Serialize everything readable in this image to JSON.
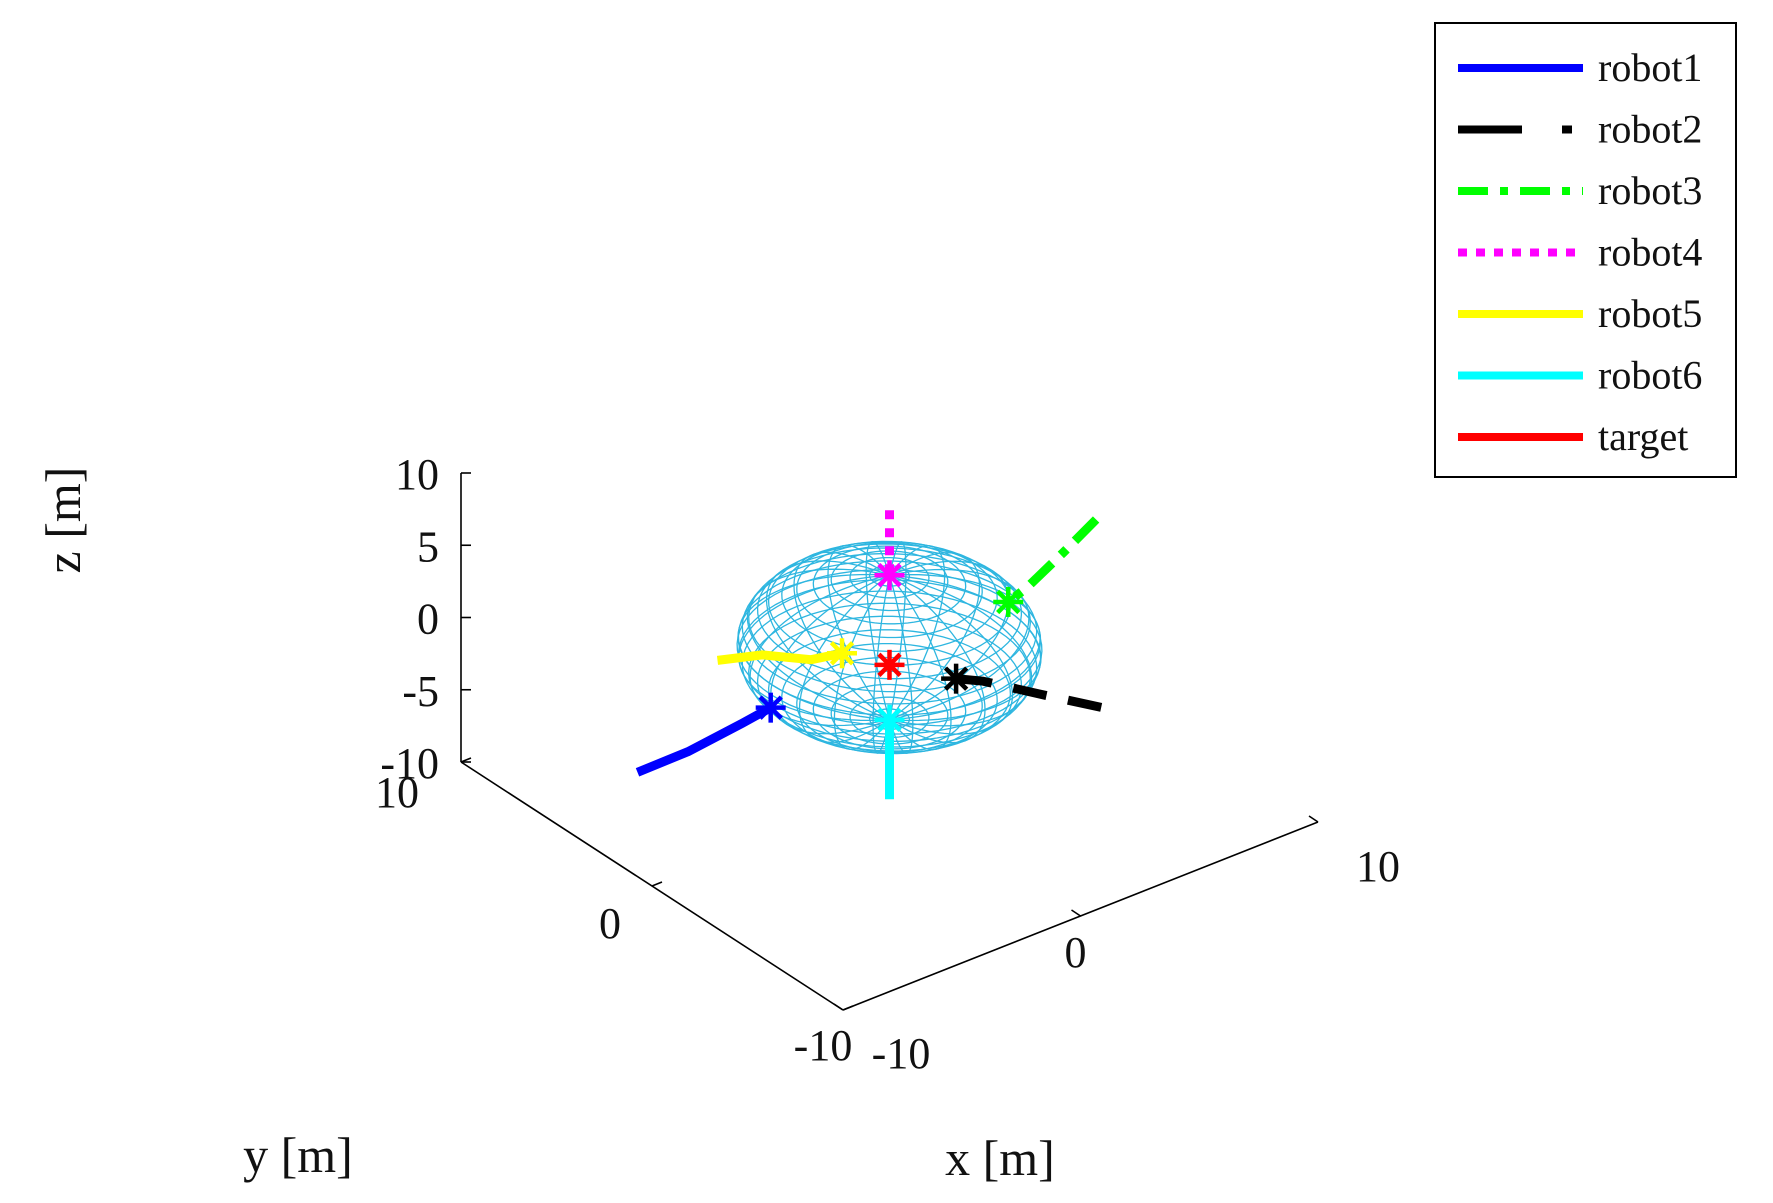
{
  "chart_data": {
    "type": "line",
    "projection": "3d",
    "xlabel": "x [m]",
    "ylabel": "y [m]",
    "zlabel": "z [m]",
    "xlim": [
      -10,
      10
    ],
    "ylim": [
      -10,
      10
    ],
    "zlim": [
      -10,
      10
    ],
    "x_ticks": [
      "-10",
      "0",
      "10"
    ],
    "y_ticks": [
      "-10",
      "0",
      "10"
    ],
    "z_ticks": [
      "-10",
      "-5",
      "0",
      "5",
      "10"
    ],
    "grid": false,
    "legend_placement": "top-right, outside plot",
    "sphere": {
      "center": [
        0,
        0,
        0
      ],
      "radius": 5,
      "color": "#2EB6E0",
      "style": "wireframe"
    },
    "series": [
      {
        "name": "robot1",
        "color": "#0000FF",
        "dash": "solid",
        "points": [
          [
            -9.0,
            2.0,
            -4.5
          ],
          [
            -7.2,
            1.6,
            -3.9
          ],
          [
            -5.4,
            1.0,
            -2.6
          ],
          [
            -4.6,
            0.5,
            -1.6
          ]
        ],
        "end_marker": "*"
      },
      {
        "name": "robot2",
        "color": "#000000",
        "dash": "dashed",
        "points": [
          [
            6.5,
            -3.0,
            -5.8
          ],
          [
            4.6,
            -2.1,
            -4.4
          ],
          [
            2.9,
            -1.3,
            -3.1
          ],
          [
            2.0,
            -1.0,
            -2.6
          ]
        ],
        "end_marker": "*"
      },
      {
        "name": "robot3",
        "color": "#00FF00",
        "dash": "dashdot",
        "points": [
          [
            8.7,
            0.0,
            3.2
          ],
          [
            7.3,
            0.0,
            1.8
          ],
          [
            5.8,
            0.0,
            0.4
          ],
          [
            5.0,
            0.0,
            -0.1
          ]
        ],
        "end_marker": "*"
      },
      {
        "name": "robot4",
        "color": "#FF00FF",
        "dash": "dotted",
        "points": [
          [
            0.0,
            0.0,
            9.5
          ],
          [
            0.0,
            0.0,
            7.0
          ],
          [
            0.0,
            0.0,
            5.0
          ]
        ],
        "end_marker": "*"
      },
      {
        "name": "robot5",
        "color": "#FFFF00",
        "dash": "solid",
        "points": [
          [
            -7.0,
            0.3,
            3.4
          ],
          [
            -5.2,
            0.2,
            2.7
          ],
          [
            -3.3,
            0.0,
            1.3
          ],
          [
            -2.0,
            0.0,
            0.9
          ]
        ],
        "end_marker": "*"
      },
      {
        "name": "robot6",
        "color": "#00FFFF",
        "dash": "solid",
        "points": [
          [
            0.0,
            0.0,
            -10.5
          ],
          [
            0.0,
            0.0,
            -8.0
          ],
          [
            0.0,
            0.0,
            -5.0
          ]
        ],
        "end_marker": "*"
      },
      {
        "name": "target",
        "color": "#FF0000",
        "dash": "solid",
        "points": [
          [
            0.0,
            0.0,
            -1.2
          ]
        ],
        "end_marker": "*"
      }
    ]
  }
}
